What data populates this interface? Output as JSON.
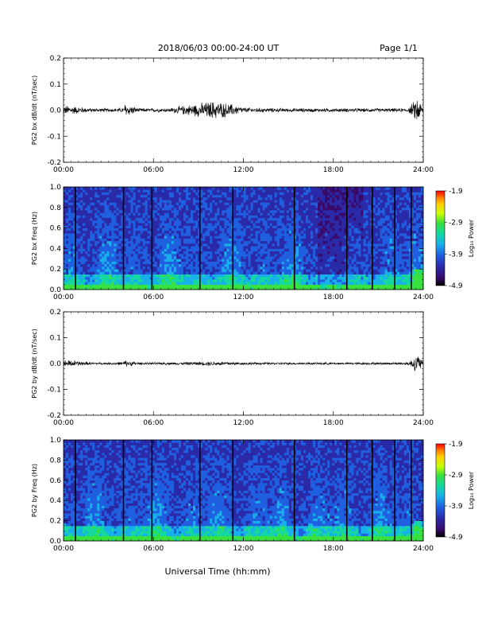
{
  "header": {
    "title": "2018/06/03   00:00-24:00 UT",
    "page": "Page 1/1"
  },
  "xlabel": "Universal Time (hh:mm)",
  "colors": {
    "trace": "#000000",
    "colorbar": [
      "#000000",
      "#3a0a6a",
      "#2a2aa8",
      "#1f5fe0",
      "#18b0e8",
      "#14d8a0",
      "#38e040",
      "#c8ff00",
      "#ffd000",
      "#ff7a00",
      "#ff0000"
    ]
  },
  "chart_data": [
    {
      "type": "line",
      "ylabel": "PG2 bx dB/dt (nT/sec)",
      "x_ticks": [
        "00:00",
        "06:00",
        "12:00",
        "18:00",
        "24:00"
      ],
      "y_ticks": [
        "0.2",
        "0.1",
        "0.0",
        "-0.1",
        "-0.2"
      ],
      "xlim": [
        0,
        24
      ],
      "ylim": [
        -0.2,
        0.2
      ],
      "series": [
        {
          "x": [
            0,
            0.5,
            1,
            2,
            3,
            4,
            4.1,
            5,
            6,
            7,
            8,
            9,
            10,
            11,
            12,
            13,
            15,
            17,
            19,
            21,
            23,
            23.3,
            23.6,
            24
          ],
          "amp": [
            0.02,
            0.02,
            0.015,
            0.008,
            0.008,
            0.01,
            0.03,
            0.008,
            0.008,
            0.008,
            0.02,
            0.03,
            0.04,
            0.03,
            0.012,
            0.01,
            0.008,
            0.008,
            0.008,
            0.008,
            0.008,
            0.03,
            0.06,
            0.01
          ]
        }
      ]
    },
    {
      "type": "heatmap",
      "ylabel": "PG2 bx Freq (Hz)",
      "x_ticks": [
        "00:00",
        "06:00",
        "12:00",
        "18:00",
        "24:00"
      ],
      "y_ticks": [
        "1.0",
        "0.8",
        "0.6",
        "0.4",
        "0.2",
        "0.0"
      ],
      "xlim": [
        0,
        24
      ],
      "ylim": [
        0,
        1
      ],
      "colorbar": {
        "label": "Log₁₀ Power",
        "ticks": [
          "-1.9",
          "-2.9",
          "-3.9",
          "-4.9"
        ],
        "range": [
          -4.9,
          -1.9
        ]
      },
      "gap_times": [
        0.8,
        4.0,
        5.9,
        9.1,
        11.3,
        15.4,
        18.9,
        20.6,
        22.1,
        23.2
      ]
    },
    {
      "type": "line",
      "ylabel": "PG2 by dB/dt (nT/sec)",
      "x_ticks": [
        "00:00",
        "06:00",
        "12:00",
        "18:00",
        "24:00"
      ],
      "y_ticks": [
        "0.2",
        "0.1",
        "0.0",
        "-0.1",
        "-0.2"
      ],
      "xlim": [
        0,
        24
      ],
      "ylim": [
        -0.2,
        0.2
      ],
      "series": [
        {
          "x": [
            0,
            0.5,
            1,
            2,
            3,
            4,
            4.1,
            5,
            6,
            8,
            10,
            12,
            14,
            16,
            18,
            20,
            22,
            23,
            23.4,
            23.7,
            24
          ],
          "amp": [
            0.015,
            0.015,
            0.01,
            0.005,
            0.005,
            0.008,
            0.015,
            0.005,
            0.005,
            0.006,
            0.01,
            0.006,
            0.005,
            0.005,
            0.005,
            0.005,
            0.005,
            0.008,
            0.03,
            0.04,
            0.008
          ]
        }
      ]
    },
    {
      "type": "heatmap",
      "ylabel": "PG2 by Freq (Hz)",
      "x_ticks": [
        "00:00",
        "06:00",
        "12:00",
        "18:00",
        "24:00"
      ],
      "y_ticks": [
        "1.0",
        "0.8",
        "0.6",
        "0.4",
        "0.2",
        "0.0"
      ],
      "xlim": [
        0,
        24
      ],
      "ylim": [
        0,
        1
      ],
      "colorbar": {
        "label": "Log₁₀ Power",
        "ticks": [
          "-1.9",
          "-2.9",
          "-3.9",
          "-4.9"
        ],
        "range": [
          -4.9,
          -1.9
        ]
      },
      "gap_times": [
        0.8,
        4.0,
        5.9,
        9.1,
        11.3,
        15.4,
        18.9,
        20.6,
        22.1,
        23.2
      ]
    }
  ]
}
